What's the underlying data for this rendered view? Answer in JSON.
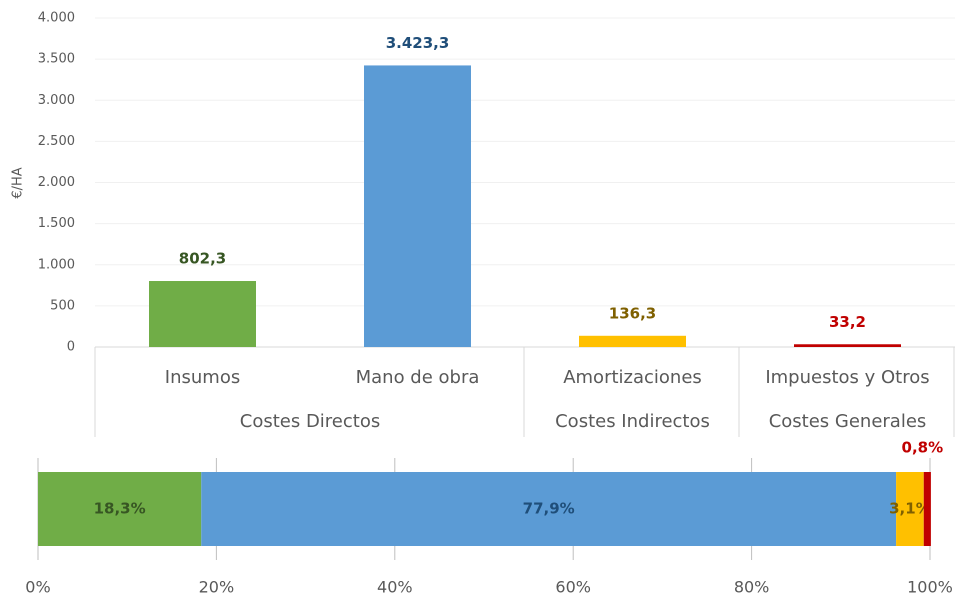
{
  "chart_data": [
    {
      "type": "bar",
      "y_label": "€/HA",
      "categories": [
        "Insumos",
        "Mano de obra",
        "Amortizaciones",
        "Impuestos y Otros"
      ],
      "groups": [
        {
          "label": "Costes Directos",
          "count": 2
        },
        {
          "label": "Costes Indirectos",
          "count": 1
        },
        {
          "label": "Costes Generales",
          "count": 1
        }
      ],
      "values": [
        802.3,
        3423.3,
        136.3,
        33.2
      ],
      "value_labels": [
        "802,3",
        "3.423,3",
        "136,3",
        "33,2"
      ],
      "colors": [
        "#70ad47",
        "#5b9bd5",
        "#ffc000",
        "#c00000"
      ],
      "label_colors": [
        "#375623",
        "#1f4e79",
        "#7f6000",
        "#c00000"
      ],
      "ylim": [
        0,
        4000
      ],
      "yticks": [
        0,
        500,
        {
          "value": 1000,
          "label": "1.000"
        },
        {
          "value": 1500,
          "label": "1.500"
        },
        {
          "value": 2000,
          "label": "2.000"
        },
        {
          "value": 2500,
          "label": "2.500"
        },
        {
          "value": 3000,
          "label": "3.000"
        },
        {
          "value": 3500,
          "label": "3.500"
        },
        {
          "value": 4000,
          "label": "4.000"
        }
      ],
      "grid": true
    },
    {
      "type": "stacked_bar_horizontal",
      "series": [
        {
          "color": "#70ad47",
          "label_color": "#375623",
          "values": [
            18.3
          ],
          "value_labels": [
            "18,3%"
          ]
        },
        {
          "color": "#5b9bd5",
          "label_color": "#1f4e79",
          "values": [
            77.9
          ],
          "value_labels": [
            "77,9%"
          ]
        },
        {
          "color": "#ffc000",
          "label_color": "#7f6000",
          "values": [
            3.1
          ],
          "value_labels": [
            "3,1%"
          ]
        },
        {
          "color": "#c00000",
          "label_color": "#c00000",
          "values": [
            0.8
          ],
          "value_labels": [
            "0,8%"
          ]
        }
      ],
      "xlim": [
        0,
        100
      ],
      "xticks": [
        {
          "value": 0,
          "label": "0%"
        },
        {
          "value": 20,
          "label": "20%"
        },
        {
          "value": 40,
          "label": "40%"
        },
        {
          "value": 60,
          "label": "60%"
        },
        {
          "value": 80,
          "label": "80%"
        },
        {
          "value": 100,
          "label": "100%"
        }
      ],
      "grid": true
    }
  ]
}
